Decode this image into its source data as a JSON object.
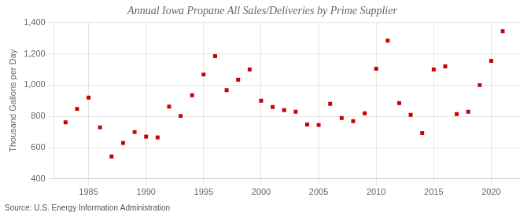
{
  "chart_data": {
    "type": "scatter",
    "title": "Annual Iowa Propane All Sales/Deliveries by Prime Supplier",
    "ylabel": "Thousand Gallons per Day",
    "annotation": "Source: U.S. Energy Information Administration",
    "x": [
      1983,
      1984,
      1985,
      1986,
      1987,
      1988,
      1989,
      1990,
      1991,
      1992,
      1993,
      1994,
      1995,
      1996,
      1997,
      1998,
      1999,
      2000,
      2001,
      2002,
      2003,
      2004,
      2005,
      2006,
      2007,
      2008,
      2009,
      2010,
      2011,
      2012,
      2013,
      2014,
      2015,
      2016,
      2017,
      2018,
      2019,
      2020,
      2021
    ],
    "values": [
      762,
      848,
      920,
      730,
      543,
      630,
      700,
      670,
      665,
      863,
      803,
      935,
      1068,
      1185,
      968,
      1035,
      1100,
      900,
      860,
      840,
      830,
      748,
      745,
      880,
      790,
      770,
      820,
      1105,
      1285,
      885,
      810,
      693,
      1100,
      1120,
      815,
      830,
      1000,
      1155,
      1345
    ],
    "color": "#cc0000",
    "marker": "square",
    "xlim": [
      1982,
      2022.5
    ],
    "xticks": [
      1985,
      1990,
      1995,
      2000,
      2005,
      2010,
      2015,
      2020
    ],
    "ylim": [
      400,
      1400
    ],
    "yticks": [
      400,
      600,
      800,
      {
        "value": 1000,
        "label": "1,000"
      },
      {
        "value": 1200,
        "label": "1,200"
      },
      {
        "value": 1400,
        "label": "1,400"
      }
    ],
    "grid": true
  }
}
